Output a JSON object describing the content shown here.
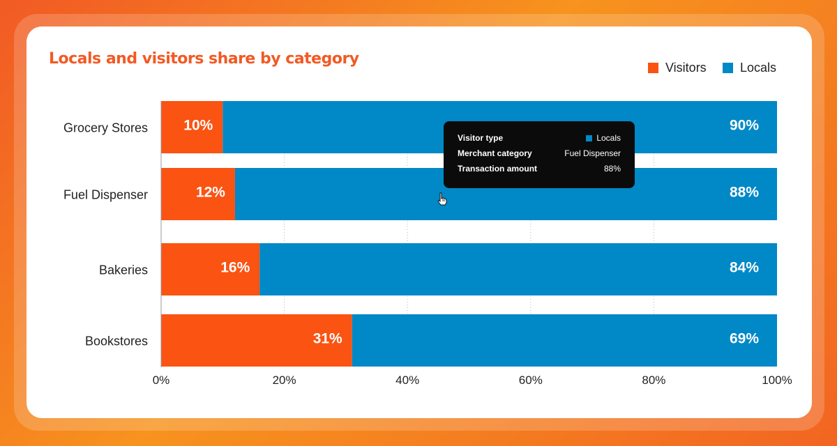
{
  "colors": {
    "visitors": "#fa5312",
    "locals": "#0088c7",
    "title": "#f15a24"
  },
  "chart_data": {
    "type": "bar",
    "orientation": "horizontal",
    "stacked": true,
    "title": "Locals and visitors share by category",
    "categories": [
      "Grocery Stores",
      "Fuel Dispenser",
      "Bakeries",
      "Bookstores"
    ],
    "series": [
      {
        "name": "Visitors",
        "values": [
          10,
          12,
          16,
          31
        ],
        "labels": [
          "10%",
          "12%",
          "16%",
          "31%"
        ]
      },
      {
        "name": "Locals",
        "values": [
          90,
          88,
          84,
          69
        ],
        "labels": [
          "90%",
          "88%",
          "84%",
          "69%"
        ]
      }
    ],
    "x_ticks": [
      "0%",
      "20%",
      "40%",
      "60%",
      "80%",
      "100%"
    ],
    "xlim": [
      0,
      100
    ],
    "grid": "vertical dotted",
    "legend_position": "top-right"
  },
  "tooltip": {
    "rows": [
      {
        "key": "Visitor type",
        "value": "Locals",
        "swatch": "locals"
      },
      {
        "key": "Merchant category",
        "value": "Fuel Dispenser"
      },
      {
        "key": "Transaction amount",
        "value": "88%"
      }
    ]
  }
}
